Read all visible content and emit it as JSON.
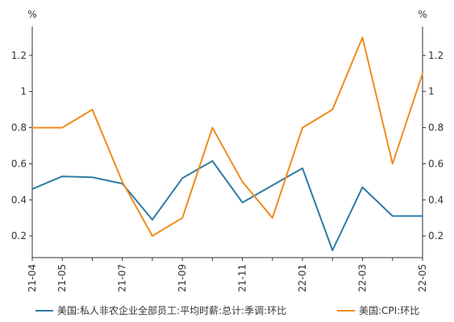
{
  "chart_data": {
    "type": "line",
    "x": [
      "21-04",
      "21-05",
      "21-06",
      "21-07",
      "21-08",
      "21-09",
      "21-10",
      "21-11",
      "21-12",
      "22-01",
      "22-02",
      "22-03",
      "22-04",
      "22-05"
    ],
    "x_tick_labels": [
      "21-04",
      "21-05",
      "21-07",
      "21-09",
      "21-11",
      "22-01",
      "22-03",
      "22-05"
    ],
    "y_left_unit": "%",
    "y_right_unit": "%",
    "ylim": [
      0.08,
      1.36
    ],
    "y_ticks": [
      0.2,
      0.4,
      0.6,
      0.8,
      1,
      1.2
    ],
    "y_tick_labels": [
      "0.2",
      "0.4",
      "0.6",
      "0.8",
      "1",
      "1.2"
    ],
    "grid": false,
    "legend_position": "bottom",
    "series": [
      {
        "name": "美国:私人非农企业全部员工:平均时薪:总计:季调:环比",
        "color": "#2e7ba4",
        "values": [
          0.46,
          0.53,
          0.525,
          0.49,
          0.29,
          0.52,
          0.615,
          0.385,
          0.48,
          0.575,
          0.12,
          0.47,
          0.31,
          0.31
        ]
      },
      {
        "name": "美国:CPI:环比",
        "color": "#f08c1d",
        "values": [
          0.8,
          0.8,
          0.9,
          0.5,
          0.2,
          0.3,
          0.8,
          0.5,
          0.3,
          0.8,
          0.9,
          1.3,
          0.6,
          1.1
        ]
      }
    ]
  }
}
